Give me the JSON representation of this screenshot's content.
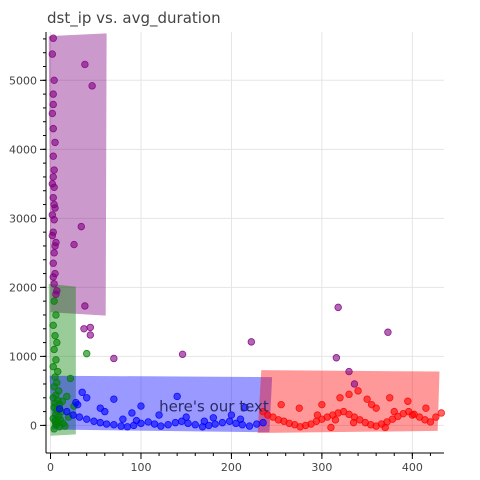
{
  "chart_data": {
    "type": "scatter",
    "title": "dst_ip vs. avg_duration",
    "xlabel": "",
    "ylabel": "",
    "xlim": [
      -5,
      435
    ],
    "ylim": [
      -400,
      5700
    ],
    "x_ticks": [
      0,
      100,
      200,
      300,
      400
    ],
    "y_ticks": [
      0,
      1000,
      2000,
      3000,
      4000,
      5000
    ],
    "grid": true,
    "annotation": {
      "text": "here's our text",
      "x": 120,
      "y": 200
    },
    "regions": [
      {
        "color": "#800080",
        "polygon": [
          [
            -2,
            5640
          ],
          [
            62,
            5680
          ],
          [
            61,
            1590
          ],
          [
            0,
            1640
          ]
        ]
      },
      {
        "color": "#008000",
        "polygon": [
          [
            -2,
            2050
          ],
          [
            28,
            2010
          ],
          [
            28,
            -130
          ],
          [
            0,
            -150
          ]
        ]
      },
      {
        "color": "#0000ff",
        "polygon": [
          [
            -1,
            720
          ],
          [
            245,
            700
          ],
          [
            242,
            -100
          ],
          [
            2,
            -60
          ]
        ]
      },
      {
        "color": "#ff0000",
        "polygon": [
          [
            233,
            800
          ],
          [
            430,
            780
          ],
          [
            428,
            -80
          ],
          [
            229,
            -110
          ]
        ]
      }
    ],
    "series": [
      {
        "color": "#800080",
        "points": [
          [
            3,
            5610
          ],
          [
            2,
            5380
          ],
          [
            4,
            5000
          ],
          [
            3,
            4800
          ],
          [
            2,
            4520
          ],
          [
            3,
            4300
          ],
          [
            5,
            4100
          ],
          [
            3,
            3900
          ],
          [
            4,
            3700
          ],
          [
            2,
            3500
          ],
          [
            3,
            3300
          ],
          [
            5,
            3150
          ],
          [
            4,
            2980
          ],
          [
            3,
            2800
          ],
          [
            6,
            2650
          ],
          [
            4,
            2500
          ],
          [
            3,
            2350
          ],
          [
            5,
            2200
          ],
          [
            4,
            2050
          ],
          [
            6,
            1900
          ],
          [
            3,
            3600
          ],
          [
            4,
            3450
          ],
          [
            2,
            3050
          ],
          [
            5,
            2600
          ],
          [
            3,
            2150
          ],
          [
            7,
            1950
          ],
          [
            38,
            5230
          ],
          [
            46,
            4920
          ],
          [
            26,
            2620
          ],
          [
            34,
            2880
          ],
          [
            38,
            1730
          ],
          [
            37,
            1400
          ],
          [
            44,
            1420
          ],
          [
            44,
            1310
          ],
          [
            70,
            970
          ],
          [
            146,
            1030
          ],
          [
            222,
            1210
          ],
          [
            318,
            1710
          ],
          [
            316,
            980
          ],
          [
            373,
            1350
          ],
          [
            330,
            780
          ],
          [
            336,
            600
          ],
          [
            3,
            4650
          ],
          [
            4,
            3200
          ],
          [
            2,
            2750
          ]
        ]
      },
      {
        "color": "#008000",
        "points": [
          [
            4,
            1800
          ],
          [
            6,
            1600
          ],
          [
            3,
            1450
          ],
          [
            5,
            1300
          ],
          [
            7,
            1200
          ],
          [
            4,
            1100
          ],
          [
            6,
            950
          ],
          [
            3,
            850
          ],
          [
            8,
            780
          ],
          [
            5,
            700
          ],
          [
            7,
            620
          ],
          [
            4,
            560
          ],
          [
            9,
            500
          ],
          [
            6,
            440
          ],
          [
            3,
            400
          ],
          [
            8,
            360
          ],
          [
            5,
            320
          ],
          [
            10,
            300
          ],
          [
            4,
            260
          ],
          [
            7,
            220
          ],
          [
            12,
            200
          ],
          [
            6,
            160
          ],
          [
            9,
            130
          ],
          [
            3,
            100
          ],
          [
            11,
            80
          ],
          [
            5,
            60
          ],
          [
            8,
            40
          ],
          [
            14,
            30
          ],
          [
            6,
            10
          ],
          [
            10,
            -20
          ],
          [
            4,
            -50
          ],
          [
            16,
            -10
          ],
          [
            40,
            1040
          ],
          [
            22,
            680
          ],
          [
            18,
            420
          ],
          [
            13,
            350
          ],
          [
            26,
            280
          ],
          [
            20,
            120
          ]
        ]
      },
      {
        "color": "#0000ff",
        "points": [
          [
            10,
            240
          ],
          [
            18,
            200
          ],
          [
            25,
            150
          ],
          [
            32,
            120
          ],
          [
            40,
            90
          ],
          [
            48,
            60
          ],
          [
            55,
            40
          ],
          [
            62,
            20
          ],
          [
            70,
            10
          ],
          [
            78,
            -10
          ],
          [
            85,
            -20
          ],
          [
            92,
            0
          ],
          [
            100,
            30
          ],
          [
            108,
            50
          ],
          [
            115,
            20
          ],
          [
            122,
            -10
          ],
          [
            130,
            10
          ],
          [
            138,
            40
          ],
          [
            145,
            60
          ],
          [
            152,
            30
          ],
          [
            160,
            10
          ],
          [
            168,
            -20
          ],
          [
            175,
            0
          ],
          [
            182,
            20
          ],
          [
            190,
            40
          ],
          [
            198,
            60
          ],
          [
            205,
            30
          ],
          [
            212,
            10
          ],
          [
            220,
            -10
          ],
          [
            228,
            20
          ],
          [
            235,
            40
          ],
          [
            40,
            400
          ],
          [
            70,
            380
          ],
          [
            30,
            300
          ],
          [
            90,
            180
          ],
          [
            120,
            150
          ],
          [
            150,
            120
          ],
          [
            180,
            110
          ],
          [
            210,
            90
          ],
          [
            55,
            250
          ],
          [
            140,
            420
          ],
          [
            100,
            280
          ],
          [
            60,
            200
          ],
          [
            80,
            90
          ],
          [
            95,
            70
          ],
          [
            170,
            60
          ],
          [
            200,
            150
          ],
          [
            215,
            260
          ],
          [
            35,
            480
          ],
          [
            28,
            330
          ]
        ]
      },
      {
        "color": "#ff0000",
        "points": [
          [
            235,
            200
          ],
          [
            240,
            150
          ],
          [
            246,
            120
          ],
          [
            252,
            80
          ],
          [
            258,
            60
          ],
          [
            264,
            30
          ],
          [
            270,
            10
          ],
          [
            276,
            -20
          ],
          [
            282,
            0
          ],
          [
            288,
            20
          ],
          [
            294,
            60
          ],
          [
            300,
            90
          ],
          [
            306,
            120
          ],
          [
            312,
            150
          ],
          [
            318,
            180
          ],
          [
            324,
            200
          ],
          [
            330,
            160
          ],
          [
            336,
            120
          ],
          [
            342,
            80
          ],
          [
            348,
            40
          ],
          [
            354,
            10
          ],
          [
            360,
            -10
          ],
          [
            366,
            20
          ],
          [
            372,
            50
          ],
          [
            378,
            90
          ],
          [
            384,
            130
          ],
          [
            390,
            170
          ],
          [
            396,
            200
          ],
          [
            402,
            160
          ],
          [
            408,
            120
          ],
          [
            414,
            80
          ],
          [
            420,
            50
          ],
          [
            426,
            120
          ],
          [
            432,
            180
          ],
          [
            300,
            300
          ],
          [
            320,
            400
          ],
          [
            340,
            500
          ],
          [
            360,
            250
          ],
          [
            380,
            200
          ],
          [
            400,
            150
          ],
          [
            255,
            300
          ],
          [
            275,
            250
          ],
          [
            295,
            150
          ],
          [
            315,
            80
          ],
          [
            335,
            40
          ],
          [
            355,
            300
          ],
          [
            375,
            400
          ],
          [
            395,
            350
          ],
          [
            415,
            250
          ],
          [
            310,
            -30
          ],
          [
            370,
            -30
          ],
          [
            330,
            450
          ],
          [
            350,
            380
          ]
        ]
      }
    ]
  }
}
